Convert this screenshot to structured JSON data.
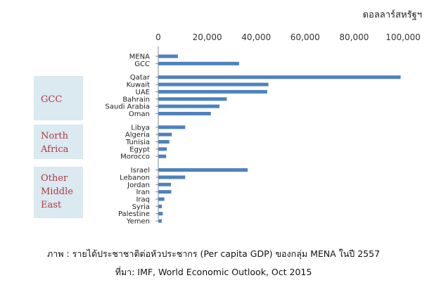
{
  "chart_data": {
    "type": "bar",
    "orientation": "horizontal",
    "unit_label": "ดอลลาร์สหรัฐฯ",
    "xlim": [
      0,
      100000
    ],
    "x_ticks": [
      "0",
      "20,000",
      "40,000",
      "60,000",
      "80,000",
      "100,000"
    ],
    "x_axis_position": "top",
    "bar_color": "#4f81bd",
    "groups": [
      {
        "label": "",
        "items": [
          {
            "name": "MENA",
            "value": 8000
          },
          {
            "name": "GCC",
            "value": 33000
          }
        ]
      },
      {
        "label": "GCC",
        "items": [
          {
            "name": "Qatar",
            "value": 99000
          },
          {
            "name": "Kuwait",
            "value": 45000
          },
          {
            "name": "UAE",
            "value": 44500
          },
          {
            "name": "Bahrain",
            "value": 28000
          },
          {
            "name": "Saudi Arabia",
            "value": 25000
          },
          {
            "name": "Oman",
            "value": 21500
          }
        ]
      },
      {
        "label": "North Africa",
        "items": [
          {
            "name": "Libya",
            "value": 11000
          },
          {
            "name": "Algeria",
            "value": 5500
          },
          {
            "name": "Tunisia",
            "value": 4500
          },
          {
            "name": "Egypt",
            "value": 3500
          },
          {
            "name": "Morocco",
            "value": 3200
          }
        ]
      },
      {
        "label": "Other Middle East",
        "items": [
          {
            "name": "Israel",
            "value": 36500
          },
          {
            "name": "Lebanon",
            "value": 11000
          },
          {
            "name": "Jordan",
            "value": 5200
          },
          {
            "name": "Iran",
            "value": 5300
          },
          {
            "name": "Iraq",
            "value": 2500
          },
          {
            "name": "Syria",
            "value": 1500
          },
          {
            "name": "Palestine",
            "value": 1800
          },
          {
            "name": "Yemen",
            "value": 1400
          }
        ]
      }
    ]
  },
  "group_boxes": [
    {
      "lines": [
        "GCC"
      ]
    },
    {
      "lines": [
        "North",
        "Africa"
      ]
    },
    {
      "lines": [
        "Other",
        "Middle",
        "East"
      ]
    }
  ],
  "caption": {
    "line1": "ภาพ : รายได้ประชาชาติต่อหัวประชากร (Per capita GDP) ของกลุ่ม MENA ในปี 2557",
    "line2": "ที่มา: IMF, World Economic Outlook, Oct 2015"
  }
}
